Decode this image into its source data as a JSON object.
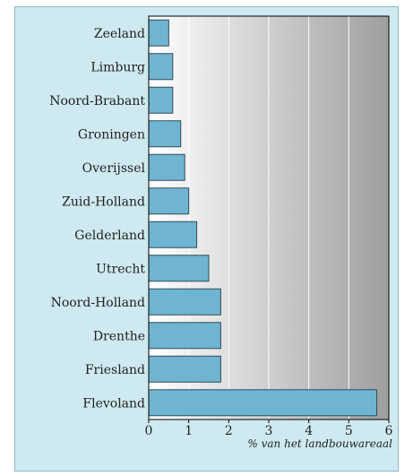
{
  "colors": {
    "panel_background": "#cfe9f0",
    "bar_fill": "#6fb4d1",
    "bar_stroke": "#2f4f5b",
    "plot_gradient_start": "#ffffff",
    "plot_gradient_end": "#9e9e9e",
    "gridline": "#ffffff",
    "axis": "#000000"
  },
  "chart_data": {
    "type": "bar",
    "orientation": "horizontal",
    "categories": [
      "Zeeland",
      "Limburg",
      "Noord-Brabant",
      "Groningen",
      "Overijssel",
      "Zuid-Holland",
      "Gelderland",
      "Utrecht",
      "Noord-Holland",
      "Drenthe",
      "Friesland",
      "Flevoland"
    ],
    "values": [
      0.5,
      0.6,
      0.6,
      0.8,
      0.9,
      1.0,
      1.2,
      1.5,
      1.8,
      1.8,
      1.8,
      5.7
    ],
    "title": "",
    "xlabel": "% van het landbouwareaal",
    "ylabel": "",
    "xlim": [
      0,
      6
    ],
    "xticks": [
      "0",
      "1",
      "2",
      "3",
      "4",
      "5",
      "6"
    ],
    "grid": true,
    "legend": "none"
  }
}
